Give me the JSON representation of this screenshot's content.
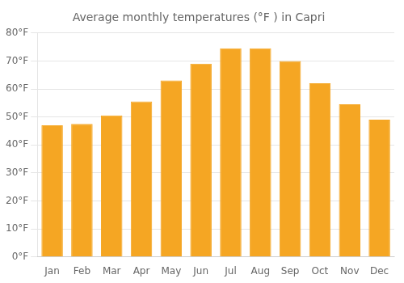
{
  "chart_data": {
    "type": "bar",
    "title": "Average monthly temperatures (°F ) in Capri",
    "categories": [
      "Jan",
      "Feb",
      "Mar",
      "Apr",
      "May",
      "Jun",
      "Jul",
      "Aug",
      "Sep",
      "Oct",
      "Nov",
      "Dec"
    ],
    "values": [
      47,
      47.5,
      50.5,
      55.5,
      63,
      69,
      74.5,
      74.5,
      70,
      62,
      54.5,
      49
    ],
    "color": "#F5A623",
    "ylim": [
      0,
      80
    ],
    "yticks": [
      {
        "value": 0,
        "label": "0°F"
      },
      {
        "value": 10,
        "label": "10°F"
      },
      {
        "value": 20,
        "label": "20°F"
      },
      {
        "value": 30,
        "label": "30°F"
      },
      {
        "value": 40,
        "label": "40°F"
      },
      {
        "value": 50,
        "label": "50°F"
      },
      {
        "value": 60,
        "label": "60°F"
      },
      {
        "value": 70,
        "label": "70°F"
      },
      {
        "value": 80,
        "label": "80°F"
      }
    ],
    "grid": true
  }
}
